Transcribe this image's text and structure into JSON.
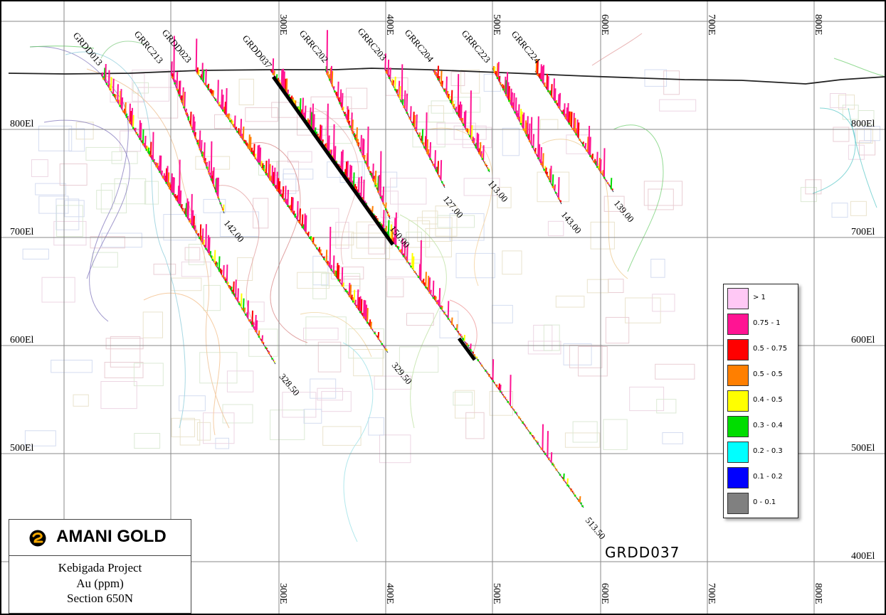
{
  "grid": {
    "easting_labels": [
      "300E",
      "400E",
      "500E",
      "600E",
      "700E",
      "800E"
    ],
    "elevation_labels": [
      "800El",
      "700El",
      "600El",
      "500El",
      "400El"
    ]
  },
  "holes": [
    {
      "id": "GRDD013",
      "end_depth": "328.50"
    },
    {
      "id": "GRRC213",
      "end_depth": "142.00"
    },
    {
      "id": "GRDD023",
      "end_depth": "329.50"
    },
    {
      "id": "GRDD037",
      "end_depth": "513.50"
    },
    {
      "id": "GRRC202",
      "end_depth": "150.00"
    },
    {
      "id": "GRRC203",
      "end_depth": "127.00"
    },
    {
      "id": "GRRC204",
      "end_depth": "113.00"
    },
    {
      "id": "GRRC223",
      "end_depth": "143.00"
    },
    {
      "id": "GRRC224",
      "end_depth": "139.00"
    }
  ],
  "highlight_label": "GRDD037",
  "legend": {
    "items": [
      {
        "label": "> 1",
        "color": "#ffc8f5"
      },
      {
        "label": "0.75 - 1",
        "color": "#ff1493"
      },
      {
        "label": "0.5 - 0.75",
        "color": "#ff0000"
      },
      {
        "label": "0.5 - 0.5",
        "color": "#ff7f00"
      },
      {
        "label": "0.4 - 0.5",
        "color": "#ffff00"
      },
      {
        "label": "0.3 - 0.4",
        "color": "#00dd00"
      },
      {
        "label": "0.2 - 0.3",
        "color": "#00ffff"
      },
      {
        "label": "0.1 - 0.2",
        "color": "#0000ff"
      },
      {
        "label": "0 - 0.1",
        "color": "#808080"
      }
    ]
  },
  "title_block": {
    "company": "AMANI GOLD",
    "project": "Kebigada Project",
    "variable": "Au (ppm)",
    "section": "Section 650N"
  }
}
